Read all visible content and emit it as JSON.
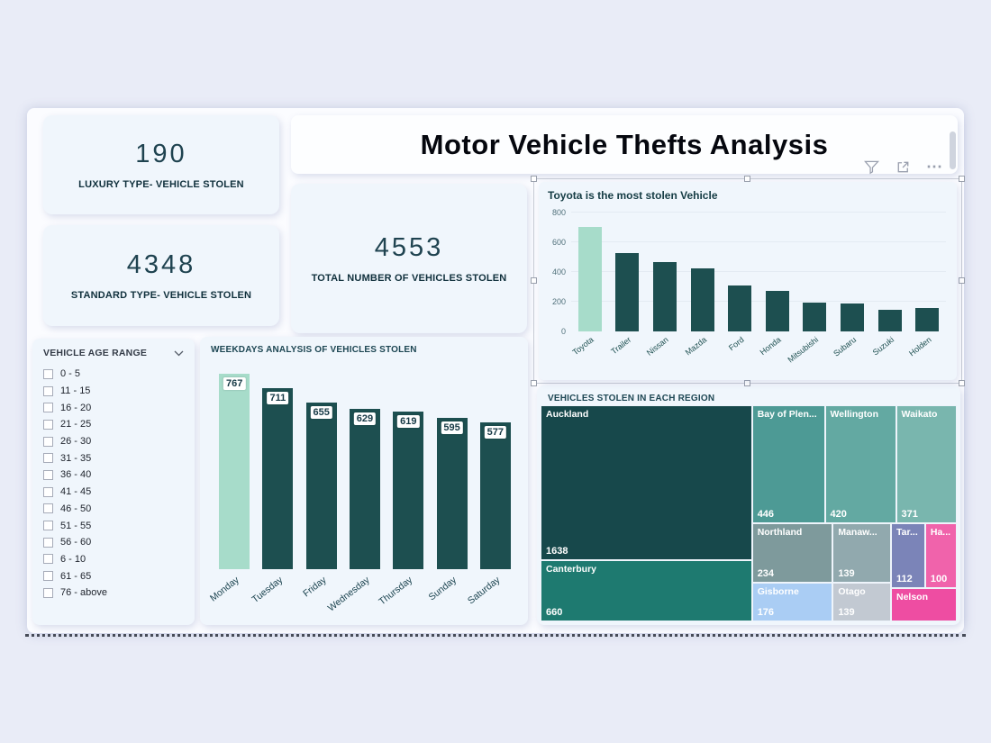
{
  "theme": {
    "background": "#e9ecf7",
    "card_background": "#f0f6fc",
    "dark_teal": "#1d4f50",
    "mint_highlight": "#a7dcca",
    "title_color": "#05070e"
  },
  "title_banner": {
    "text": "Motor Vehicle Thefts Analysis"
  },
  "kpi_cards": [
    {
      "value": "190",
      "label": "LUXURY TYPE- VEHICLE STOLEN"
    },
    {
      "value": "4348",
      "label": "STANDARD TYPE- VEHICLE STOLEN"
    },
    {
      "value": "4553",
      "label": "TOTAL NUMBER OF VEHICLES STOLEN"
    }
  ],
  "visual_header_icons": [
    "filter-funnel",
    "focus-mode",
    "more-options"
  ],
  "slicer": {
    "header": "VEHICLE AGE RANGE",
    "chevron_icon": "chevron-down",
    "options": [
      "0 - 5",
      "11 - 15",
      "16 - 20",
      "21 - 25",
      "26 - 30",
      "31 - 35",
      "36 - 40",
      "41 - 45",
      "46 - 50",
      "51 - 55",
      "56 - 60",
      "6 - 10",
      "61 - 65",
      "76 - above"
    ],
    "checked": []
  },
  "chart_data": [
    {
      "type": "bar",
      "title": "Toyota is the most  stolen Vehicle",
      "categories": [
        "Toyota",
        "Trailer",
        "Nissan",
        "Mazda",
        "Ford",
        "Honda",
        "Mitsubishi",
        "Subaru",
        "Suzuki",
        "Holden"
      ],
      "values": [
        705,
        530,
        465,
        425,
        310,
        270,
        195,
        190,
        148,
        155
      ],
      "ylim": [
        0,
        800
      ],
      "yticks": [
        0,
        200,
        400,
        600,
        800
      ],
      "highlight": "Toyota",
      "bar_color": "#1d4f50",
      "highlight_color": "#a7dcca",
      "grid": true,
      "legend": false
    },
    {
      "type": "bar",
      "title": "WEEKDAYS ANALYSIS OF VEHICLES STOLEN",
      "categories": [
        "Monday",
        "Tuesday",
        "Friday",
        "Wednesday",
        "Thursday",
        "Sunday",
        "Saturday"
      ],
      "values": [
        767,
        711,
        655,
        629,
        619,
        595,
        577
      ],
      "ylim": [
        0,
        800
      ],
      "data_labels": true,
      "highlight": "Monday",
      "bar_color": "#1d4f50",
      "highlight_color": "#a7dcca",
      "grid": false,
      "legend": false
    },
    {
      "type": "treemap",
      "title": "VEHICLES STOLEN IN EACH  REGION",
      "items": [
        {
          "name": "Auckland",
          "value": "1638",
          "color": "#17484b"
        },
        {
          "name": "Canterbury",
          "value": "660",
          "color": "#1e7a70"
        },
        {
          "name": "Bay of Plen...",
          "value": "446",
          "color": "#4d9a95"
        },
        {
          "name": "Wellington",
          "value": "420",
          "color": "#63a9a2"
        },
        {
          "name": "Waikato",
          "value": "371",
          "color": "#79b6ae"
        },
        {
          "name": "Northland",
          "value": "234",
          "color": "#7e9a9c"
        },
        {
          "name": "Manaw...",
          "value": "139",
          "color": "#91a9ae"
        },
        {
          "name": "Tar...",
          "value": "112",
          "color": "#7b84b8"
        },
        {
          "name": "Ha...",
          "value": "100",
          "color": "#f063ab"
        },
        {
          "name": "Gisborne",
          "value": "176",
          "color": "#aacdf4"
        },
        {
          "name": "Otago",
          "value": "139",
          "color": "#c2c9d2"
        },
        {
          "name": "Nelson",
          "value": "",
          "color": "#ee4da2"
        }
      ]
    }
  ]
}
